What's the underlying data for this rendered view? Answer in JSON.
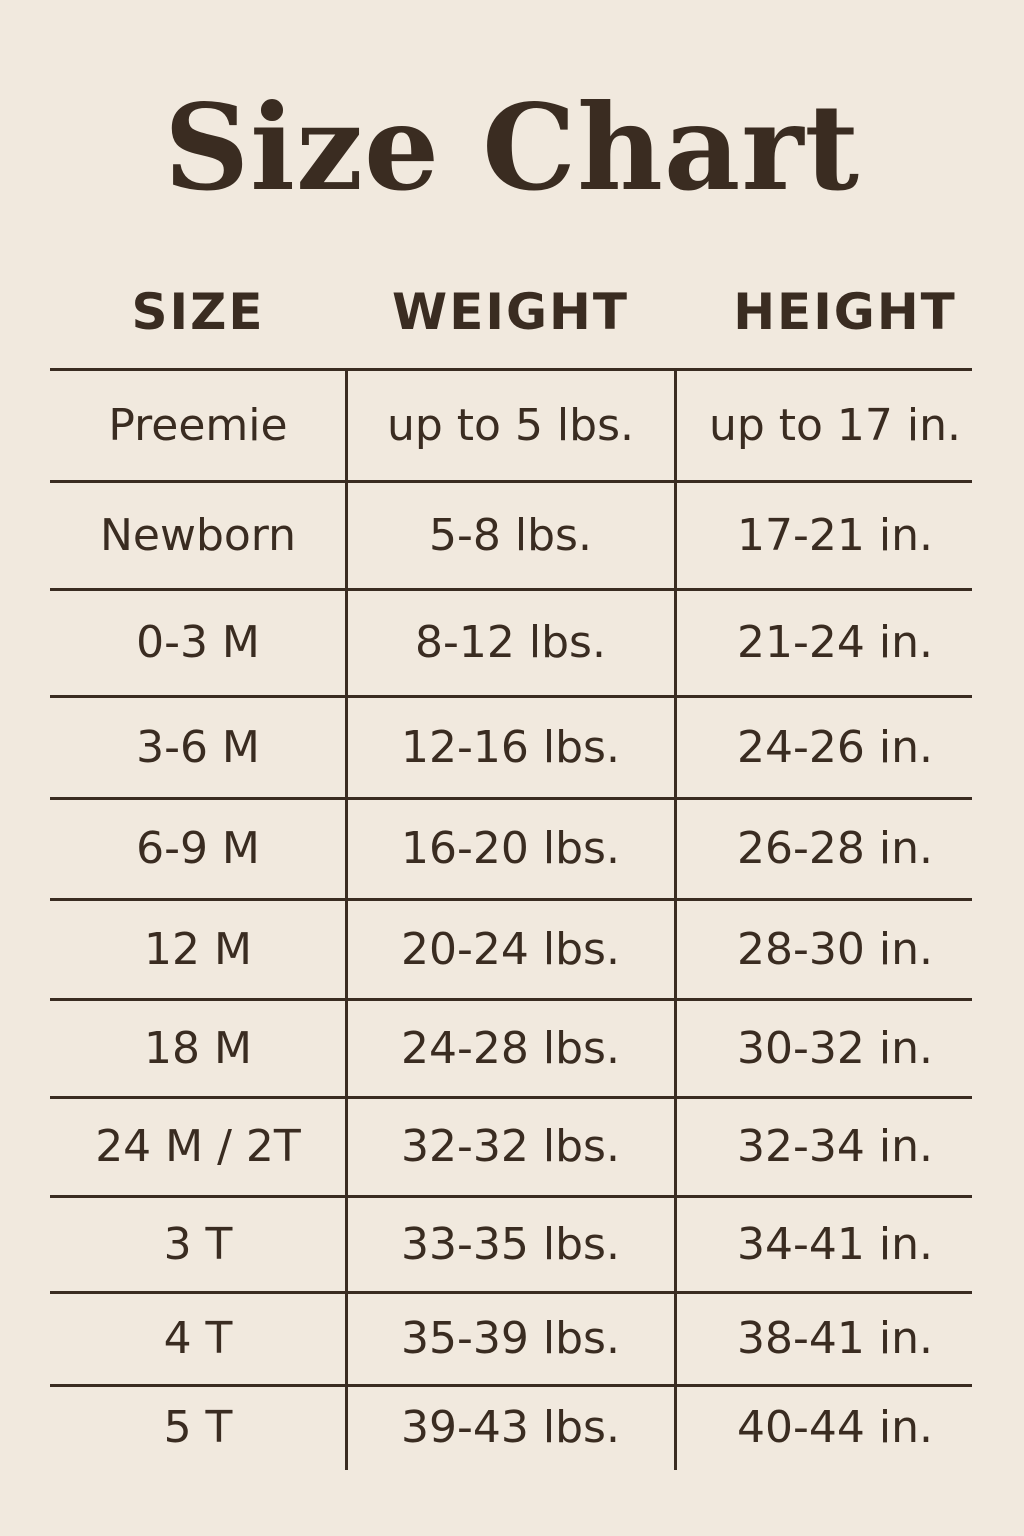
{
  "title": "Size Chart",
  "columns": [
    "SIZE",
    "WEIGHT",
    "HEIGHT"
  ],
  "rows": [
    [
      "Preemie",
      "up to 5 lbs.",
      "up to 17 in."
    ],
    [
      "Newborn",
      "5-8 lbs.",
      "17-21 in."
    ],
    [
      "0-3 M",
      "8-12 lbs.",
      "21-24 in."
    ],
    [
      "3-6 M",
      "12-16 lbs.",
      "24-26 in."
    ],
    [
      "6-9 M",
      "16-20 lbs.",
      "26-28 in."
    ],
    [
      "12 M",
      "20-24 lbs.",
      "28-30 in."
    ],
    [
      "18 M",
      "24-28 lbs.",
      "30-32 in."
    ],
    [
      "24 M / 2T",
      "32-32 lbs.",
      "32-34 in."
    ],
    [
      "3 T",
      "33-35 lbs.",
      "34-41 in."
    ],
    [
      "4 T",
      "35-39 lbs.",
      "38-41 in."
    ],
    [
      "5 T",
      "39-43 lbs.",
      "40-44 in."
    ]
  ],
  "colors": {
    "background": "#f1e9de",
    "text": "#3a2c21"
  }
}
